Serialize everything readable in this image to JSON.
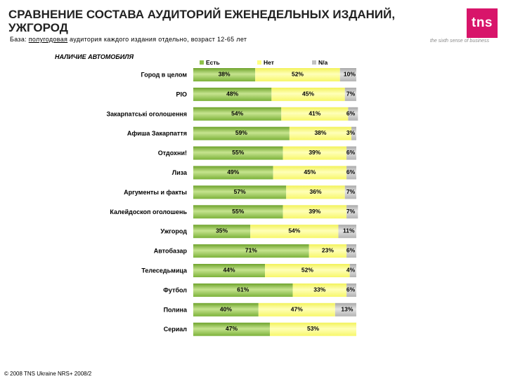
{
  "header": {
    "title": "СРАВНЕНИЕ СОСТАВА АУДИТОРИЙ ЕЖЕНЕДЕЛЬНЫХ ИЗДАНИЙ,\nУЖГОРОД",
    "base_prefix": "База: ",
    "base_underlined": "полугодовая",
    "base_rest": " аудитория каждого издания отдельно, возраст 12-65 лет"
  },
  "logo": {
    "text": "tns",
    "tagline": "the sixth sense of business",
    "color": "#d8156a"
  },
  "footer": {
    "copyright": "© 2008 TNS Ukraine  NRS+ 2008/2"
  },
  "chart_data": {
    "type": "bar",
    "orientation": "horizontal",
    "stacked": true,
    "title": "НАЛИЧИЕ АВТОМОБИЛЯ",
    "legend_position": "top",
    "xlim": [
      0,
      100
    ],
    "categories": [
      "Город в целом",
      "PIO",
      "Закарпатські оголошення",
      "Афиша Закарпаття",
      "Отдохни!",
      "Лиза",
      "Аргументы и факты",
      "Калейдоскоп оголошень",
      "Ужгород",
      "Автобазар",
      "Телеседьмица",
      "Футбол",
      "Полина",
      "Сериал"
    ],
    "series": [
      {
        "name": "Есть",
        "color": "#8fc24a",
        "values": [
          38,
          48,
          54,
          59,
          55,
          49,
          57,
          55,
          35,
          71,
          44,
          61,
          40,
          47
        ],
        "labels": [
          "38%",
          "48%",
          "54%",
          "59%",
          "55%",
          "49%",
          "57%",
          "55%",
          "35%",
          "71%",
          "44%",
          "61%",
          "40%",
          "47%"
        ]
      },
      {
        "name": "Нет",
        "color": "#ffff80",
        "values": [
          52,
          45,
          41,
          38,
          39,
          45,
          36,
          39,
          54,
          23,
          52,
          33,
          47,
          53
        ],
        "labels": [
          "52%",
          "45%",
          "41%",
          "38%",
          "39%",
          "45%",
          "36%",
          "39%",
          "54%",
          "23%",
          "52%",
          "33%",
          "47%",
          "53%"
        ]
      },
      {
        "name": "N/a",
        "color": "#c0c0c0",
        "values": [
          10,
          7,
          6,
          3,
          6,
          6,
          7,
          7,
          11,
          6,
          4,
          6,
          13,
          0
        ],
        "labels": [
          "10%",
          "7%",
          "6%",
          "3%",
          "6%",
          "6%",
          "7%",
          "7%",
          "11%",
          "6%",
          "4%",
          "6%",
          "13%",
          ""
        ]
      }
    ]
  }
}
